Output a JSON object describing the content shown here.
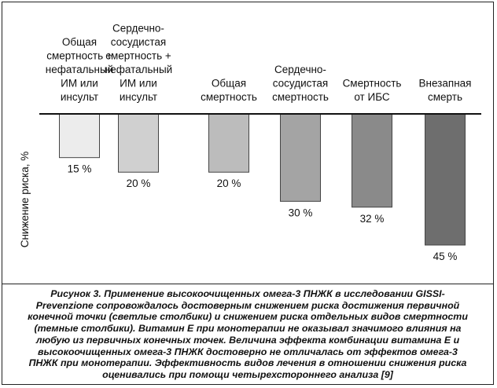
{
  "chart_data": {
    "type": "bar",
    "orientation": "downward",
    "ylabel": "Снижение риска, %",
    "categories": [
      [
        "Общая",
        "смертность +",
        "нефатальный",
        "ИМ или",
        "инсульт"
      ],
      [
        "Сердечно-",
        "сосудистая",
        "смертность +",
        "нефатальный",
        "ИМ или",
        "инсульт"
      ],
      [
        "Общая",
        "смертность"
      ],
      [
        "Сердечно-",
        "сосудистая",
        "смертность"
      ],
      [
        "Смертность",
        "от ИБС"
      ],
      [
        "Внезапная",
        "смерть"
      ]
    ],
    "values": [
      15,
      20,
      20,
      30,
      32,
      45
    ],
    "value_labels": [
      "15 %",
      "20 %",
      "20 %",
      "30 %",
      "32 %",
      "45 %"
    ],
    "bar_colors": [
      "#ececec",
      "#d0d0d0",
      "#bcbcbc",
      "#a4a4a4",
      "#8a8a8a",
      "#6e6e6e"
    ],
    "ylim": [
      0,
      45
    ],
    "grid": false,
    "legend": "none"
  },
  "caption_lines": [
    "Рисунок 3. Применение высокоочищенных омега-3 ПНЖК в исследовании GISSI-",
    "Prevenzione сопровождалось достоверным снижением риска достижения первичной",
    "конечной точки (светлые столбики) и снижением риска отдельных видов смертности",
    "(темные столбики). Витамин Е при монотерапии не оказывал значимого влияния на",
    "любую из первичных конечных точек. Величина эффекта комбинации витамина Е и",
    "высокоочищенных омега-3 ПНЖК достоверно не отличалась от эффектов омега-3",
    "ПНЖК при монотерапии. Эффективность видов лечения в отношении снижения риска",
    "оценивались при помощи четырехстороннего анализа [9]"
  ]
}
